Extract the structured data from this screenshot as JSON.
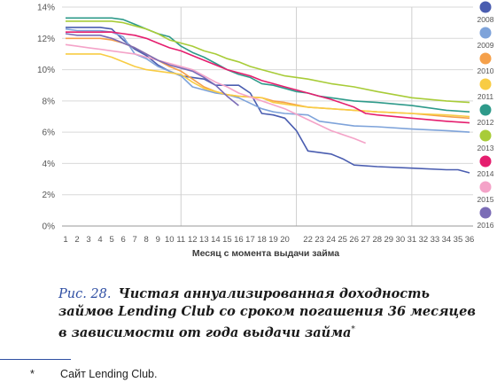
{
  "chart_data": {
    "type": "line",
    "title": "",
    "xlabel": "Месяц с момента выдачи займа",
    "ylabel": "",
    "ylim": [
      0,
      14
    ],
    "xlim": [
      1,
      36
    ],
    "y_ticks": [
      "0%",
      "2%",
      "4%",
      "6%",
      "8%",
      "10%",
      "12%",
      "14%"
    ],
    "y_tick_values": [
      0,
      2,
      4,
      6,
      8,
      10,
      12,
      14
    ],
    "x_ticks": [
      1,
      2,
      3,
      4,
      5,
      6,
      7,
      8,
      9,
      10,
      11,
      12,
      13,
      14,
      15,
      16,
      17,
      18,
      19,
      20,
      22,
      23,
      24,
      25,
      26,
      27,
      28,
      29,
      30,
      31,
      32,
      33,
      34,
      35,
      36
    ],
    "vertical_gridlines_at": [
      11,
      21,
      31
    ],
    "legend_position": "right",
    "series": [
      {
        "name": "2008",
        "color": "#4a5db0",
        "points": [
          [
            1,
            12.7
          ],
          [
            2,
            12.7
          ],
          [
            3,
            12.7
          ],
          [
            4,
            12.7
          ],
          [
            5,
            12.6
          ],
          [
            6,
            11.9
          ],
          [
            7,
            11.3
          ],
          [
            8,
            10.9
          ],
          [
            9,
            10.3
          ],
          [
            10,
            9.9
          ],
          [
            11,
            9.6
          ],
          [
            12,
            9.5
          ],
          [
            13,
            9.4
          ],
          [
            14,
            9.0
          ],
          [
            15,
            9.0
          ],
          [
            16,
            9.0
          ],
          [
            17,
            8.5
          ],
          [
            18,
            7.2
          ],
          [
            19,
            7.1
          ],
          [
            20,
            6.9
          ],
          [
            21,
            6.1
          ],
          [
            22,
            4.8
          ],
          [
            23,
            4.7
          ],
          [
            24,
            4.6
          ],
          [
            25,
            4.3
          ],
          [
            26,
            3.9
          ],
          [
            28,
            3.8
          ],
          [
            31,
            3.7
          ],
          [
            34,
            3.6
          ],
          [
            35,
            3.6
          ],
          [
            36,
            3.4
          ]
        ]
      },
      {
        "name": "2009",
        "color": "#7ea3da",
        "points": [
          [
            1,
            12.6
          ],
          [
            2,
            12.5
          ],
          [
            3,
            12.5
          ],
          [
            4,
            12.5
          ],
          [
            5,
            12.4
          ],
          [
            6,
            12.1
          ],
          [
            7,
            11.0
          ],
          [
            8,
            10.7
          ],
          [
            9,
            10.2
          ],
          [
            10,
            9.9
          ],
          [
            11,
            9.6
          ],
          [
            12,
            8.9
          ],
          [
            13,
            8.7
          ],
          [
            14,
            8.5
          ],
          [
            15,
            8.4
          ],
          [
            16,
            8.2
          ],
          [
            18,
            7.5
          ],
          [
            19,
            7.3
          ],
          [
            20,
            7.2
          ],
          [
            22,
            7.1
          ],
          [
            23,
            6.7
          ],
          [
            24,
            6.6
          ],
          [
            26,
            6.4
          ],
          [
            28,
            6.35
          ],
          [
            31,
            6.2
          ],
          [
            34,
            6.1
          ],
          [
            36,
            6.0
          ]
        ]
      },
      {
        "name": "2010",
        "color": "#f5a04a",
        "points": [
          [
            1,
            12.0
          ],
          [
            2,
            12.0
          ],
          [
            3,
            12.0
          ],
          [
            4,
            12.0
          ],
          [
            5,
            11.9
          ],
          [
            6,
            11.7
          ],
          [
            7,
            11.4
          ],
          [
            8,
            11.0
          ],
          [
            9,
            10.6
          ],
          [
            10,
            10.2
          ],
          [
            11,
            9.9
          ],
          [
            12,
            9.4
          ],
          [
            13,
            8.9
          ],
          [
            14,
            8.6
          ],
          [
            15,
            8.4
          ],
          [
            16,
            8.3
          ],
          [
            18,
            8.2
          ],
          [
            19,
            8.0
          ],
          [
            20,
            7.9
          ],
          [
            22,
            7.6
          ],
          [
            24,
            7.5
          ],
          [
            26,
            7.4
          ],
          [
            28,
            7.3
          ],
          [
            31,
            7.2
          ],
          [
            34,
            7.0
          ],
          [
            36,
            6.9
          ]
        ]
      },
      {
        "name": "2011",
        "color": "#f8cc44",
        "points": [
          [
            1,
            11.0
          ],
          [
            2,
            11.0
          ],
          [
            3,
            11.0
          ],
          [
            4,
            11.0
          ],
          [
            5,
            10.8
          ],
          [
            6,
            10.5
          ],
          [
            7,
            10.2
          ],
          [
            8,
            10.0
          ],
          [
            9,
            9.9
          ],
          [
            10,
            9.8
          ],
          [
            11,
            9.7
          ],
          [
            12,
            9.2
          ],
          [
            13,
            8.8
          ],
          [
            14,
            8.6
          ],
          [
            15,
            8.4
          ],
          [
            16,
            8.3
          ],
          [
            18,
            8.2
          ],
          [
            19,
            7.9
          ],
          [
            20,
            7.8
          ],
          [
            22,
            7.6
          ],
          [
            24,
            7.5
          ],
          [
            26,
            7.4
          ],
          [
            28,
            7.3
          ],
          [
            31,
            7.2
          ],
          [
            34,
            7.1
          ],
          [
            36,
            7.0
          ]
        ]
      },
      {
        "name": "2012",
        "color": "#2e9a8a",
        "points": [
          [
            1,
            13.3
          ],
          [
            2,
            13.3
          ],
          [
            3,
            13.3
          ],
          [
            4,
            13.3
          ],
          [
            5,
            13.3
          ],
          [
            6,
            13.2
          ],
          [
            7,
            12.9
          ],
          [
            8,
            12.6
          ],
          [
            9,
            12.3
          ],
          [
            10,
            12.1
          ],
          [
            11,
            11.5
          ],
          [
            12,
            11.1
          ],
          [
            13,
            10.8
          ],
          [
            14,
            10.4
          ],
          [
            15,
            10.0
          ],
          [
            16,
            9.7
          ],
          [
            17,
            9.5
          ],
          [
            18,
            9.1
          ],
          [
            19,
            9.0
          ],
          [
            20,
            8.8
          ],
          [
            21,
            8.6
          ],
          [
            22,
            8.5
          ],
          [
            23,
            8.3
          ],
          [
            24,
            8.2
          ],
          [
            26,
            8.0
          ],
          [
            28,
            7.9
          ],
          [
            31,
            7.7
          ],
          [
            34,
            7.4
          ],
          [
            36,
            7.3
          ]
        ]
      },
      {
        "name": "2013",
        "color": "#a8cc38",
        "points": [
          [
            1,
            13.1
          ],
          [
            2,
            13.1
          ],
          [
            3,
            13.1
          ],
          [
            4,
            13.1
          ],
          [
            5,
            13.1
          ],
          [
            6,
            13.0
          ],
          [
            7,
            12.8
          ],
          [
            8,
            12.6
          ],
          [
            9,
            12.3
          ],
          [
            10,
            11.9
          ],
          [
            11,
            11.7
          ],
          [
            12,
            11.5
          ],
          [
            13,
            11.2
          ],
          [
            14,
            11.0
          ],
          [
            15,
            10.7
          ],
          [
            16,
            10.5
          ],
          [
            17,
            10.2
          ],
          [
            18,
            10.0
          ],
          [
            19,
            9.8
          ],
          [
            20,
            9.6
          ],
          [
            22,
            9.4
          ],
          [
            24,
            9.1
          ],
          [
            26,
            8.9
          ],
          [
            28,
            8.6
          ],
          [
            31,
            8.2
          ],
          [
            34,
            8.0
          ],
          [
            36,
            7.9
          ]
        ]
      },
      {
        "name": "2014",
        "color": "#e51e6e",
        "points": [
          [
            1,
            12.4
          ],
          [
            2,
            12.4
          ],
          [
            3,
            12.4
          ],
          [
            4,
            12.4
          ],
          [
            5,
            12.4
          ],
          [
            6,
            12.3
          ],
          [
            7,
            12.2
          ],
          [
            8,
            12.0
          ],
          [
            9,
            11.7
          ],
          [
            10,
            11.4
          ],
          [
            11,
            11.2
          ],
          [
            12,
            10.9
          ],
          [
            13,
            10.6
          ],
          [
            14,
            10.3
          ],
          [
            15,
            10.0
          ],
          [
            16,
            9.8
          ],
          [
            17,
            9.6
          ],
          [
            18,
            9.3
          ],
          [
            19,
            9.1
          ],
          [
            20,
            8.9
          ],
          [
            22,
            8.5
          ],
          [
            24,
            8.1
          ],
          [
            26,
            7.6
          ],
          [
            27,
            7.2
          ],
          [
            28,
            7.1
          ],
          [
            31,
            6.9
          ],
          [
            34,
            6.7
          ],
          [
            36,
            6.6
          ]
        ]
      },
      {
        "name": "2015",
        "color": "#f4a3c8",
        "points": [
          [
            1,
            11.6
          ],
          [
            2,
            11.5
          ],
          [
            3,
            11.4
          ],
          [
            4,
            11.3
          ],
          [
            5,
            11.2
          ],
          [
            6,
            11.1
          ],
          [
            7,
            11.0
          ],
          [
            8,
            10.8
          ],
          [
            9,
            10.6
          ],
          [
            10,
            10.4
          ],
          [
            11,
            10.2
          ],
          [
            12,
            10.0
          ],
          [
            13,
            9.6
          ],
          [
            14,
            9.2
          ],
          [
            15,
            8.9
          ],
          [
            16,
            8.5
          ],
          [
            18,
            8.0
          ],
          [
            20,
            7.5
          ],
          [
            22,
            6.8
          ],
          [
            24,
            6.1
          ],
          [
            26,
            5.6
          ],
          [
            27,
            5.3
          ]
        ]
      },
      {
        "name": "2016",
        "color": "#7b6cb6",
        "points": [
          [
            1,
            12.3
          ],
          [
            2,
            12.2
          ],
          [
            3,
            12.2
          ],
          [
            4,
            12.2
          ],
          [
            5,
            12.0
          ],
          [
            6,
            11.7
          ],
          [
            7,
            11.4
          ],
          [
            8,
            11.0
          ],
          [
            9,
            10.6
          ],
          [
            10,
            10.3
          ],
          [
            11,
            10.1
          ],
          [
            12,
            9.9
          ],
          [
            13,
            9.5
          ],
          [
            14,
            9.0
          ],
          [
            15,
            8.3
          ],
          [
            16,
            7.7
          ]
        ]
      }
    ]
  },
  "caption": {
    "label": "Рис. 28.",
    "text": "Чистая аннуализированная доходность займов Lending Club со сроком погашения 36 месяцев в зависимости от года выдачи займа",
    "footnote_mark": "*"
  },
  "footnote": {
    "mark": "*",
    "text": "Сайт Lending Club."
  }
}
